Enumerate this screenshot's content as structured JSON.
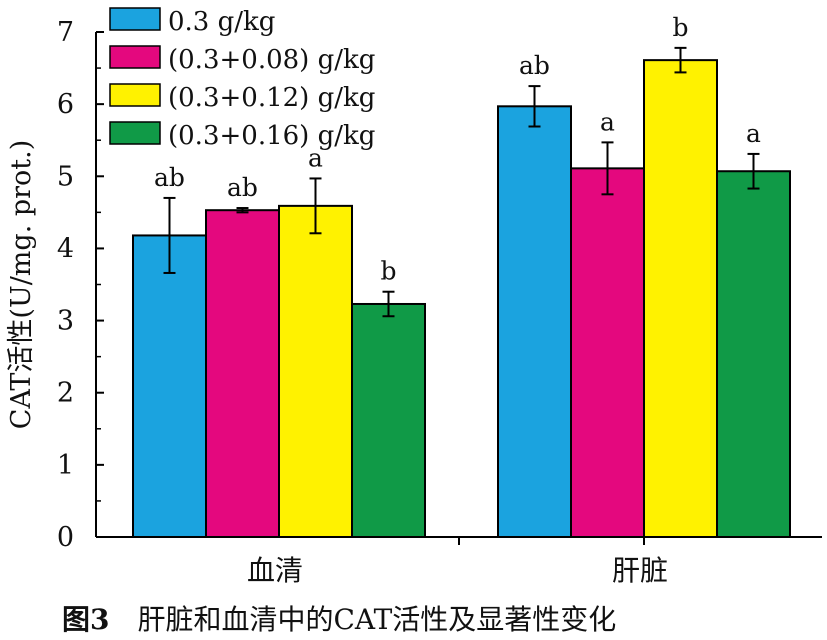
{
  "chart_data": {
    "type": "bar",
    "ylabel": "CAT活性(U/mg. prot.)",
    "ylim": [
      0,
      7
    ],
    "yticks": [
      "0",
      "1",
      "2",
      "3",
      "4",
      "5",
      "6",
      "7"
    ],
    "categories": [
      "血清",
      "肝脏"
    ],
    "legend_position": "top-left",
    "series": [
      {
        "name": "0.3 g/kg",
        "color": "#1ba3df",
        "values": [
          4.18,
          5.97
        ],
        "errors": [
          0.52,
          0.28
        ],
        "labels": [
          "ab",
          "ab"
        ]
      },
      {
        "name": "(0.3+0.08) g/kg",
        "color": "#e4087e",
        "values": [
          4.53,
          5.11
        ],
        "errors": [
          0.03,
          0.36
        ],
        "labels": [
          "ab",
          "a"
        ]
      },
      {
        "name": "(0.3+0.12) g/kg",
        "color": "#fff200",
        "values": [
          4.59,
          6.61
        ],
        "errors": [
          0.38,
          0.17
        ],
        "labels": [
          "a",
          "b"
        ]
      },
      {
        "name": "(0.3+0.16) g/kg",
        "color": "#109a47",
        "values": [
          3.23,
          5.07
        ],
        "errors": [
          0.17,
          0.24
        ],
        "labels": [
          "b",
          "a"
        ]
      }
    ]
  },
  "caption": {
    "figure_label": "图3",
    "text": "肝脏和血清中的CAT活性及显著性变化"
  }
}
